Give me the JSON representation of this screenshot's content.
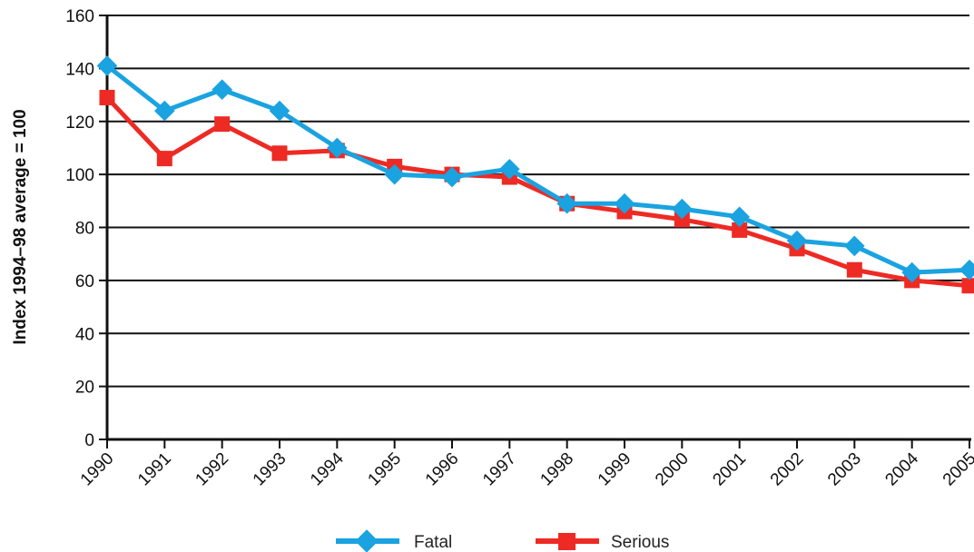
{
  "chart_data": {
    "type": "line",
    "title": "",
    "xlabel": "",
    "ylabel": "Index 1994–98 average = 100",
    "categories": [
      "1990",
      "1991",
      "1992",
      "1993",
      "1994",
      "1995",
      "1996",
      "1997",
      "1998",
      "1999",
      "2000",
      "2001",
      "2002",
      "2003",
      "2004",
      "2005"
    ],
    "yticks": [
      "0",
      "20",
      "40",
      "60",
      "80",
      "100",
      "120",
      "140",
      "160"
    ],
    "ylim": [
      0,
      160
    ],
    "grid": "horizontal",
    "legend_position": "bottom",
    "series": [
      {
        "name": "Fatal",
        "color": "#1aa3e0",
        "marker": "diamond",
        "values": [
          141,
          124,
          132,
          124,
          110,
          100,
          99,
          102,
          89,
          89,
          87,
          84,
          75,
          73,
          63,
          64
        ]
      },
      {
        "name": "Serious",
        "color": "#ee2a24",
        "marker": "square",
        "values": [
          129,
          106,
          119,
          108,
          109,
          103,
          100,
          99,
          89,
          86,
          83,
          79,
          72,
          64,
          60,
          58
        ]
      }
    ]
  }
}
